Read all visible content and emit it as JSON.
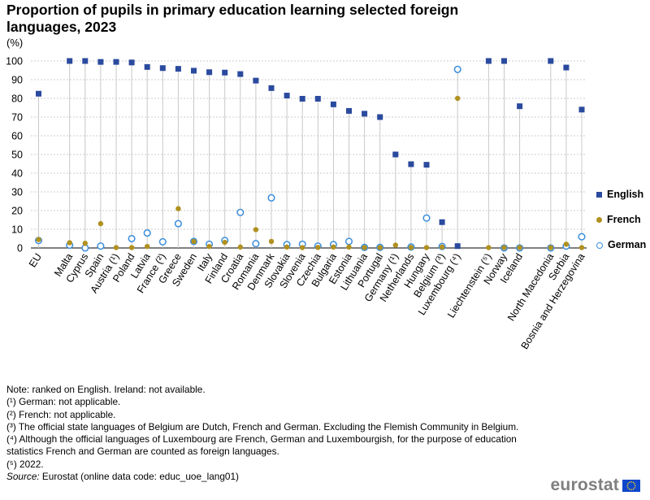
{
  "title": "Proportion of pupils in primary education learning selected foreign languages, 2023",
  "unit": "(%)",
  "chart_data": {
    "type": "scatter",
    "categories": [
      "EU",
      "Malta",
      "Cyprus",
      "Spain",
      "Austria (¹)",
      "Poland",
      "Latvia",
      "France (²)",
      "Greece",
      "Sweden",
      "Italy",
      "Finland",
      "Croatia",
      "Romania",
      "Denmark",
      "Slovakia",
      "Slovenia",
      "Czechia",
      "Bulgaria",
      "Estonia",
      "Lithuania",
      "Portugal",
      "Germany (¹)",
      "Netherlands",
      "Hungary",
      "Belgium (³)",
      "Luxembourg (⁴)",
      "Liechtenstein (⁵)",
      "Norway",
      "Iceland",
      "North Macedonia",
      "Serbia",
      "Bosnia and Herzegovina"
    ],
    "series": [
      {
        "name": "English",
        "color": "#2a4a9e",
        "marker": "square",
        "values": [
          82.5,
          100,
          100,
          99.5,
          99.5,
          99.2,
          96.8,
          96.2,
          95.8,
          94.8,
          94.0,
          93.8,
          93.0,
          89.5,
          85.5,
          81.5,
          79.8,
          79.8,
          76.8,
          73.3,
          71.8,
          70.0,
          50.0,
          44.8,
          44.5,
          13.8,
          1.0,
          100,
          100,
          75.8,
          100,
          96.5,
          74.0
        ]
      },
      {
        "name": "French",
        "color": "#b09120",
        "marker": "circle",
        "values": [
          4.5,
          2.8,
          2.5,
          13.0,
          0.2,
          0.2,
          0.8,
          null,
          21.0,
          3.5,
          0.8,
          3.0,
          0.5,
          9.8,
          3.5,
          0.5,
          0.2,
          0.3,
          0.5,
          0.5,
          0.2,
          0.2,
          1.5,
          0.3,
          0.2,
          0.5,
          80.0,
          0.2,
          0.2,
          0.2,
          0.2,
          2.0,
          0.2
        ]
      },
      {
        "name": "German",
        "color": "#3a8ddc",
        "marker": "hollow-circle",
        "values": [
          4.0,
          1.5,
          0.0,
          1.0,
          null,
          5.0,
          8.0,
          3.3,
          13.0,
          3.5,
          2.0,
          4.0,
          19.0,
          2.3,
          26.8,
          1.8,
          2.0,
          1.0,
          1.8,
          3.5,
          0.3,
          0.3,
          null,
          0.5,
          16.0,
          0.8,
          95.5,
          null,
          0.0,
          0.0,
          0.0,
          1.0,
          6.0
        ]
      }
    ],
    "ylim": [
      0,
      100
    ],
    "yticks": [
      0,
      10,
      20,
      30,
      40,
      50,
      60,
      70,
      80,
      90,
      100
    ],
    "grid": true,
    "legend_position": "right"
  },
  "notes": [
    "Note: ranked on English. Ireland: not available.",
    "(¹) German: not applicable.",
    "(²) French: not applicable.",
    "(³) The official state languages of Belgium are Dutch, French and German. Excluding the Flemish Community in Belgium.",
    "(⁴) Although the official languages of Luxembourg are French, German and Luxembourgish, for the purpose of education statistics French and German are counted as foreign languages.",
    "(⁵) 2022."
  ],
  "source_label": "Source:",
  "source_text": " Eurostat (online data code: educ_uoe_lang01)",
  "logo_text": "eurostat"
}
